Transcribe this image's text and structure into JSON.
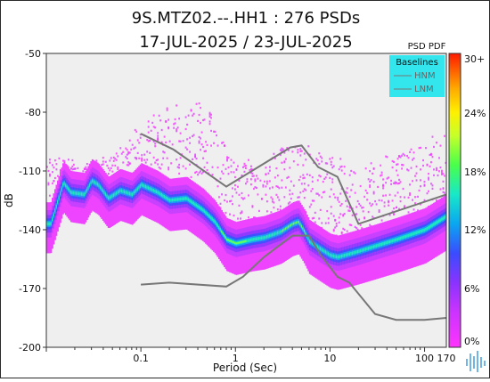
{
  "title_line1": "9S.MTZ02.--.HH1 : 276 PSDs",
  "title_line2": "17-JUL-2025 / 23-JUL-2025",
  "legend": {
    "title": "Baselines",
    "items": [
      {
        "label": "HNM",
        "color": "#777777"
      },
      {
        "label": "LNM",
        "color": "#777777"
      }
    ],
    "background": "#33e6ee"
  },
  "colorbar": {
    "title": "PSD PDF",
    "ticks": [
      "30+",
      "24%",
      "18%",
      "12%",
      "6%",
      "0%"
    ]
  },
  "colors": {
    "plot_background": "#efefef",
    "baseline_line": "#777777",
    "logo": "#6fb6e6"
  },
  "chart_data": {
    "type": "heatmap",
    "title": "9S.MTZ02.--.HH1 : 276 PSDs",
    "subtitle": "17-JUL-2025 / 23-JUL-2025",
    "xlabel": "Period (Sec)",
    "ylabel": "dB",
    "xscale": "log",
    "xlim": [
      0.01,
      170
    ],
    "ylim": [
      -200,
      -50
    ],
    "xticks": [
      {
        "value": 0.1,
        "label": "0.1"
      },
      {
        "value": 1,
        "label": "1"
      },
      {
        "value": 10,
        "label": "10"
      },
      {
        "value": 100,
        "label": "100"
      },
      {
        "value": 170,
        "label": "170"
      }
    ],
    "yticks": [
      -50,
      -80,
      -110,
      -140,
      -170,
      -200
    ],
    "colorbar_range_percent": [
      0,
      30
    ],
    "series": [
      {
        "name": "HNM",
        "x": [
          0.1,
          0.22,
          0.8,
          3.8,
          5.0,
          7.5,
          12,
          20,
          170
        ],
        "y": [
          -91,
          -99,
          -118,
          -98,
          -97,
          -108,
          -113,
          -137,
          -122
        ]
      },
      {
        "name": "LNM",
        "x": [
          0.1,
          0.2,
          0.8,
          1.2,
          2.0,
          4.0,
          6.0,
          8.0,
          12,
          16,
          30,
          50,
          100,
          170
        ],
        "y": [
          -168,
          -167,
          -169,
          -164,
          -154,
          -143,
          -143,
          -153,
          -164,
          -167,
          -183,
          -186,
          -186,
          -185
        ]
      }
    ],
    "modal_psd": {
      "x": [
        0.011,
        0.015,
        0.018,
        0.025,
        0.03,
        0.035,
        0.045,
        0.06,
        0.08,
        0.1,
        0.15,
        0.2,
        0.3,
        0.45,
        0.6,
        0.8,
        1.0,
        1.5,
        2.0,
        3.0,
        4.0,
        4.6,
        5.2,
        6.0,
        8.0,
        10,
        12,
        20,
        50,
        100,
        170
      ],
      "y": [
        -137,
        -116,
        -121,
        -122,
        -115,
        -117,
        -124,
        -120,
        -122,
        -117,
        -121,
        -125,
        -124,
        -130,
        -136,
        -145,
        -147,
        -145,
        -144,
        -141,
        -137,
        -136,
        -140,
        -146,
        -150,
        -153,
        -154,
        -151,
        -145,
        -140,
        -133
      ]
    },
    "outlier_psd": {
      "x": [
        0.01,
        0.02,
        0.05,
        0.1,
        0.15,
        0.2,
        0.3,
        0.4,
        0.6,
        1.0,
        2.0,
        3.0,
        5.0,
        10,
        20,
        50,
        100,
        170
      ],
      "y": [
        -101,
        -107,
        -104,
        -85,
        -78,
        -79,
        -77,
        -74,
        -84,
        -104,
        -110,
        -95,
        -97,
        -103,
        -109,
        -100,
        -95,
        -92
      ]
    }
  }
}
